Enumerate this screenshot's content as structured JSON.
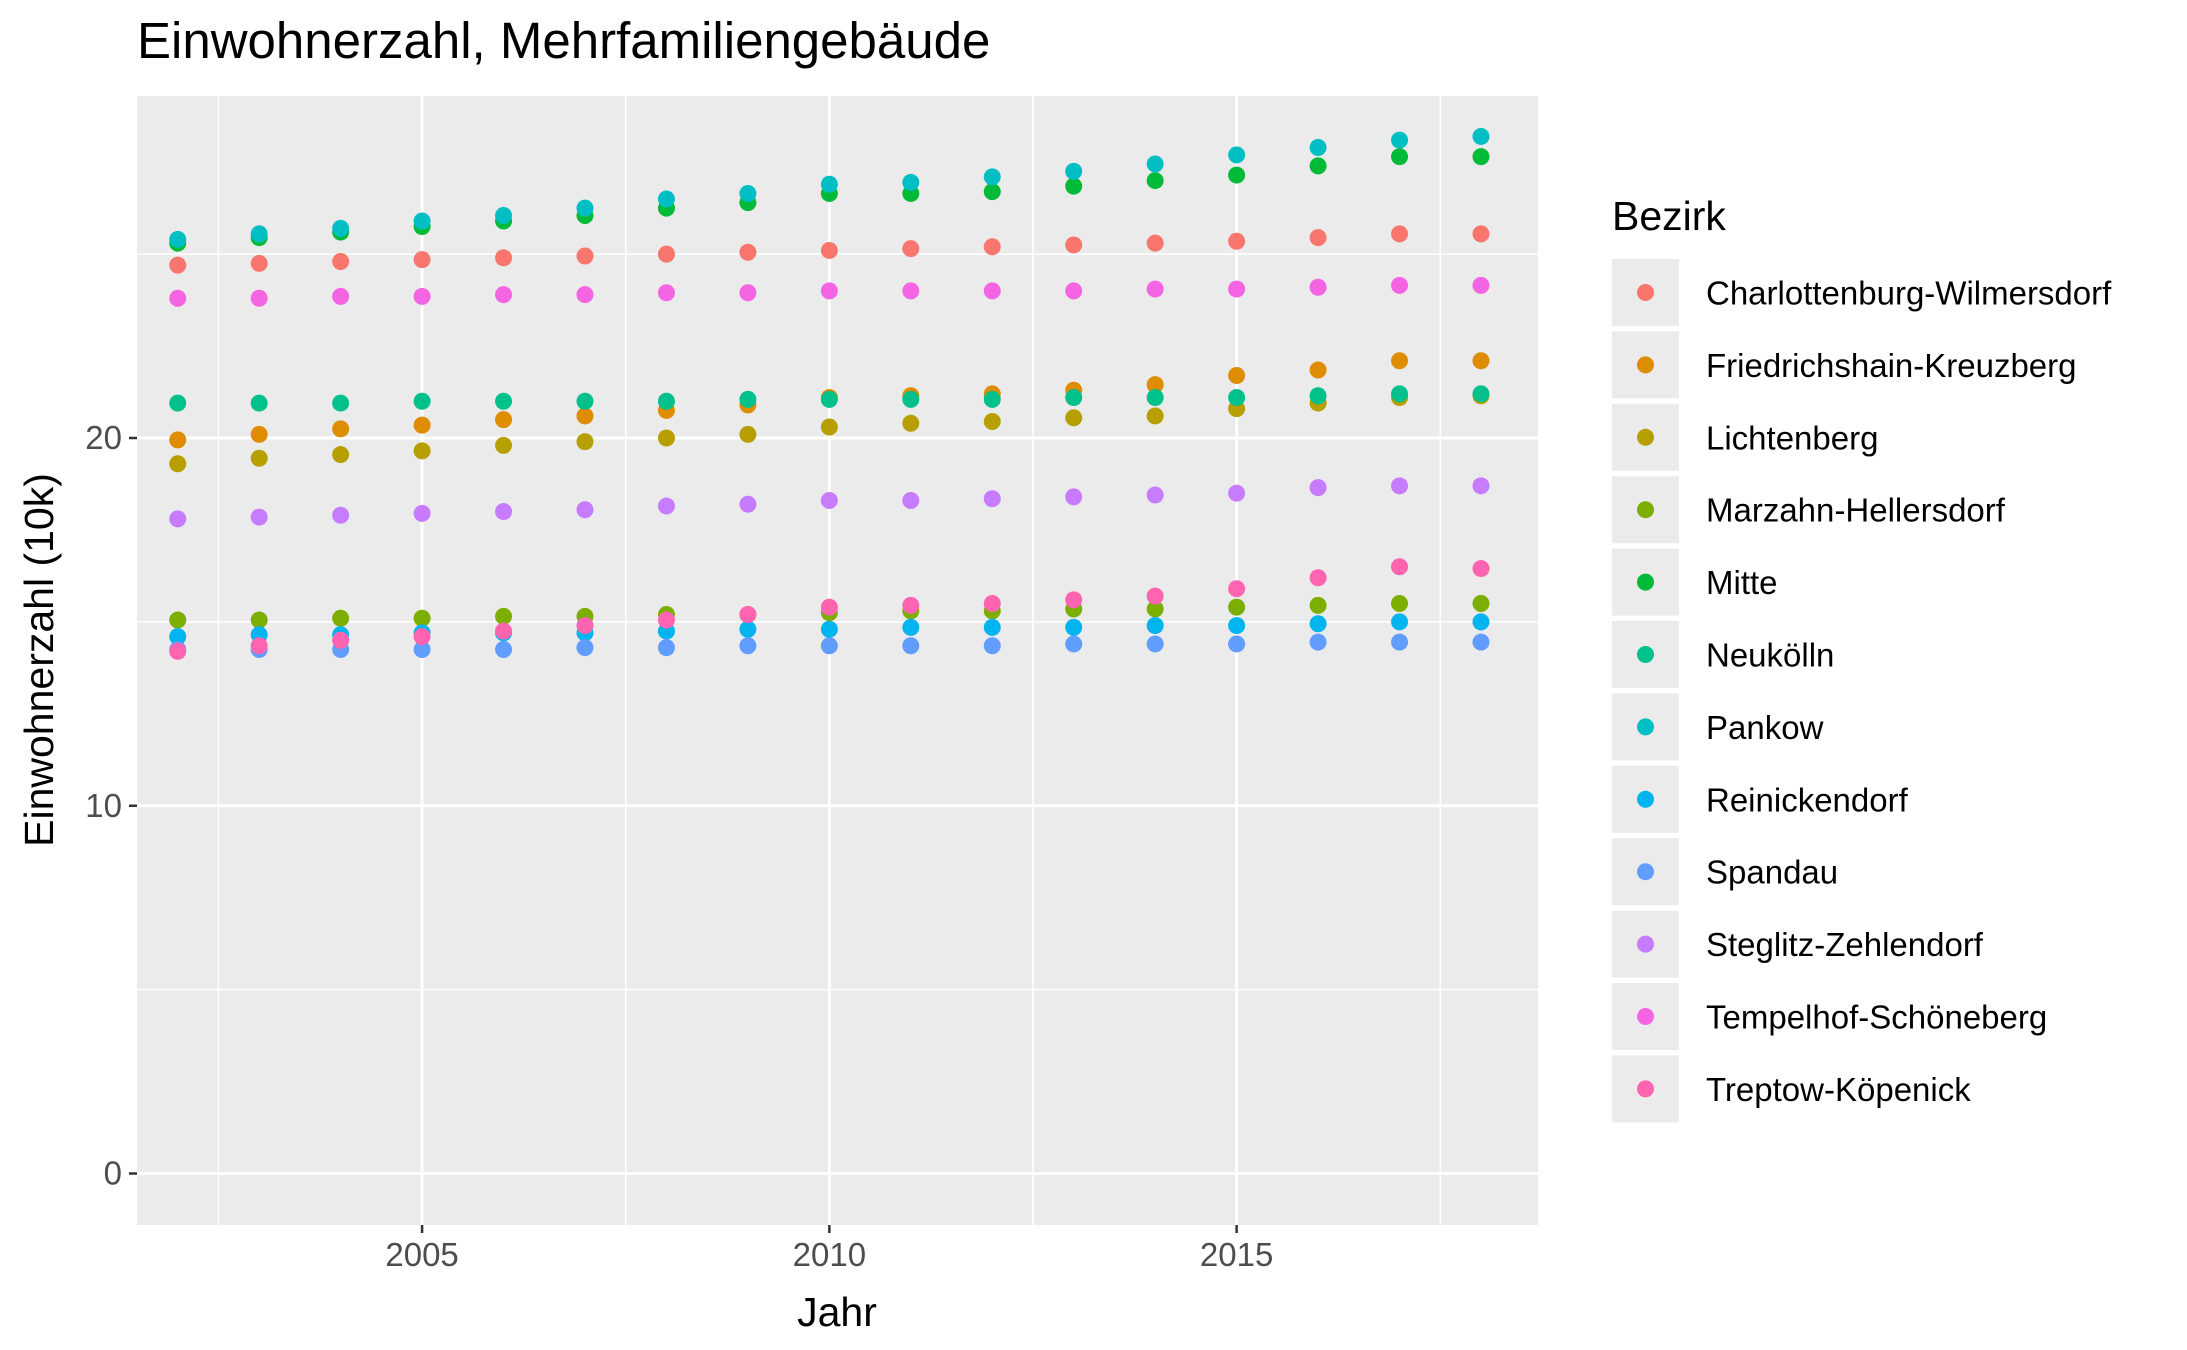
{
  "chart_data": {
    "type": "scatter",
    "title": "Einwohnerzahl, Mehrfamiliengebäude",
    "xlabel": "Jahr",
    "ylabel": "Einwohnerzahl (10k)",
    "xlim": [
      2001.5,
      2018.7
    ],
    "ylim": [
      -1.4,
      29.3
    ],
    "x_ticks": [
      2005,
      2010,
      2015
    ],
    "y_ticks": [
      0,
      10,
      20
    ],
    "x_minor_breaks": [
      2002.5,
      2007.5,
      2012.5,
      2017.5
    ],
    "y_minor_breaks": [
      5,
      15,
      25
    ],
    "grid": true,
    "legend_position": "right",
    "legend_title": "Bezirk",
    "x": [
      2002,
      2003,
      2004,
      2005,
      2006,
      2007,
      2008,
      2009,
      2010,
      2011,
      2012,
      2013,
      2014,
      2015,
      2016,
      2017,
      2018
    ],
    "series": [
      {
        "name": "Charlottenburg-Wilmersdorf",
        "color": "#F8766D",
        "values": [
          24.7,
          24.75,
          24.8,
          24.85,
          24.9,
          24.95,
          25.0,
          25.05,
          25.1,
          25.15,
          25.2,
          25.25,
          25.3,
          25.35,
          25.45,
          25.55,
          25.55
        ]
      },
      {
        "name": "Friedrichshain-Kreuzberg",
        "color": "#DE8C00",
        "values": [
          19.95,
          20.1,
          20.25,
          20.35,
          20.5,
          20.6,
          20.75,
          20.9,
          21.1,
          21.15,
          21.2,
          21.3,
          21.45,
          21.7,
          21.85,
          22.1,
          22.1
        ]
      },
      {
        "name": "Lichtenberg",
        "color": "#B79F00",
        "values": [
          19.3,
          19.45,
          19.55,
          19.65,
          19.8,
          19.9,
          20.0,
          20.1,
          20.3,
          20.4,
          20.45,
          20.55,
          20.6,
          20.8,
          20.95,
          21.1,
          21.15
        ]
      },
      {
        "name": "Marzahn-Hellersdorf",
        "color": "#7CAE00",
        "values": [
          15.05,
          15.05,
          15.1,
          15.1,
          15.15,
          15.15,
          15.2,
          15.2,
          15.25,
          15.3,
          15.3,
          15.35,
          15.35,
          15.4,
          15.45,
          15.5,
          15.5
        ]
      },
      {
        "name": "Mitte",
        "color": "#00BA38",
        "values": [
          25.3,
          25.45,
          25.6,
          25.75,
          25.9,
          26.05,
          26.25,
          26.4,
          26.65,
          26.65,
          26.7,
          26.85,
          27.0,
          27.15,
          27.4,
          27.65,
          27.65
        ]
      },
      {
        "name": "Neukölln",
        "color": "#00C08B",
        "values": [
          20.95,
          20.95,
          20.95,
          21.0,
          21.0,
          21.0,
          21.0,
          21.05,
          21.05,
          21.05,
          21.05,
          21.1,
          21.1,
          21.1,
          21.15,
          21.2,
          21.2
        ]
      },
      {
        "name": "Pankow",
        "color": "#00BFC4",
        "values": [
          25.4,
          25.55,
          25.7,
          25.9,
          26.05,
          26.25,
          26.5,
          26.65,
          26.9,
          26.95,
          27.1,
          27.25,
          27.45,
          27.7,
          27.9,
          28.1,
          28.2
        ]
      },
      {
        "name": "Reinickendorf",
        "color": "#00B4F0",
        "values": [
          14.6,
          14.65,
          14.65,
          14.7,
          14.7,
          14.7,
          14.75,
          14.8,
          14.8,
          14.85,
          14.85,
          14.85,
          14.9,
          14.9,
          14.95,
          15.0,
          15.0
        ]
      },
      {
        "name": "Spandau",
        "color": "#619CFF",
        "values": [
          14.25,
          14.25,
          14.25,
          14.25,
          14.25,
          14.3,
          14.3,
          14.35,
          14.35,
          14.35,
          14.35,
          14.4,
          14.4,
          14.4,
          14.45,
          14.45,
          14.45
        ]
      },
      {
        "name": "Steglitz-Zehlendorf",
        "color": "#C77CFF",
        "values": [
          17.8,
          17.85,
          17.9,
          17.95,
          18.0,
          18.05,
          18.15,
          18.2,
          18.3,
          18.3,
          18.35,
          18.4,
          18.45,
          18.5,
          18.65,
          18.7,
          18.7
        ]
      },
      {
        "name": "Tempelhof-Schöneberg",
        "color": "#F564E3",
        "values": [
          23.8,
          23.8,
          23.85,
          23.85,
          23.9,
          23.9,
          23.95,
          23.95,
          24.0,
          24.0,
          24.0,
          24.0,
          24.05,
          24.05,
          24.1,
          24.15,
          24.15
        ]
      },
      {
        "name": "Treptow-Köpenick",
        "color": "#FF64B0",
        "values": [
          14.2,
          14.35,
          14.5,
          14.6,
          14.75,
          14.9,
          15.05,
          15.2,
          15.4,
          15.45,
          15.5,
          15.6,
          15.7,
          15.9,
          16.2,
          16.5,
          16.45
        ]
      }
    ]
  }
}
